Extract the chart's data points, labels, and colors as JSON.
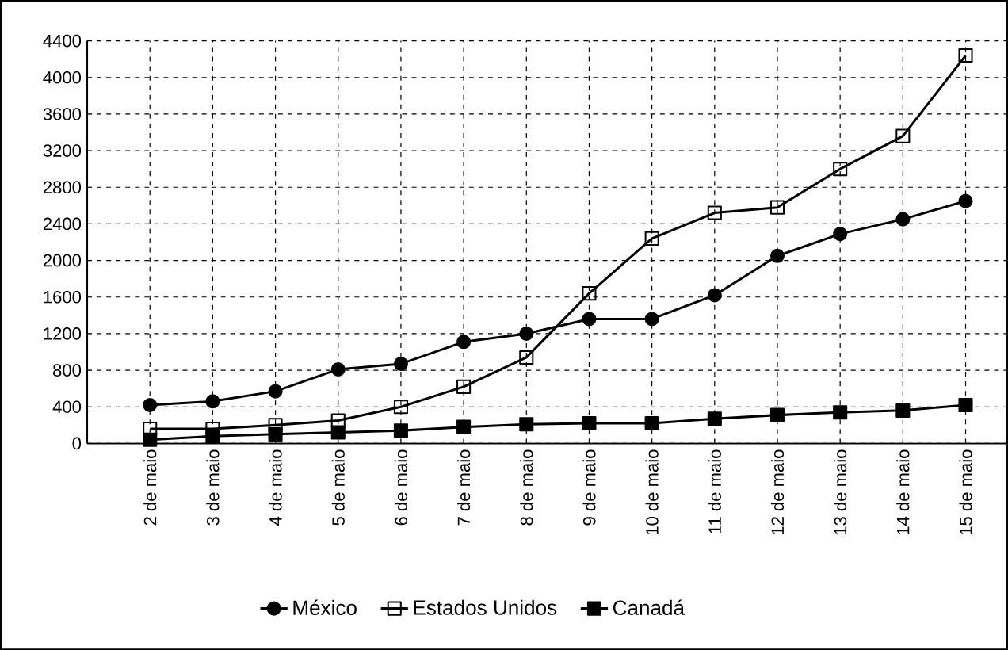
{
  "chart_data": {
    "type": "line",
    "categories": [
      "2 de maio",
      "3 de maio",
      "4 de maio",
      "5 de maio",
      "6 de maio",
      "7 de maio",
      "8 de maio",
      "9 de maio",
      "10 de maio",
      "11 de maio",
      "12 de maio",
      "13 de maio",
      "14 de maio",
      "15 de maio"
    ],
    "series": [
      {
        "name": "México",
        "color": "#000000",
        "marker": "circle",
        "values": [
          420,
          460,
          570,
          810,
          870,
          1110,
          1200,
          1360,
          1360,
          1620,
          2050,
          2290,
          2450,
          2650
        ]
      },
      {
        "name": "Estados Unidos",
        "color": "#000000",
        "marker": "square open",
        "values": [
          160,
          160,
          200,
          250,
          400,
          620,
          940,
          1640,
          2240,
          2520,
          2580,
          3000,
          3360,
          4240
        ]
      },
      {
        "name": "Canadá",
        "color": "#000000",
        "marker": "square",
        "values": [
          40,
          80,
          100,
          120,
          140,
          180,
          210,
          220,
          220,
          270,
          310,
          340,
          360,
          420
        ]
      }
    ],
    "ylim": [
      0,
      4400
    ],
    "yticks": [
      0,
      400,
      800,
      1200,
      1600,
      2000,
      2400,
      2800,
      3200,
      3600,
      4000,
      4400
    ],
    "grid": true,
    "legend": "bottom",
    "line_style": "solid"
  }
}
